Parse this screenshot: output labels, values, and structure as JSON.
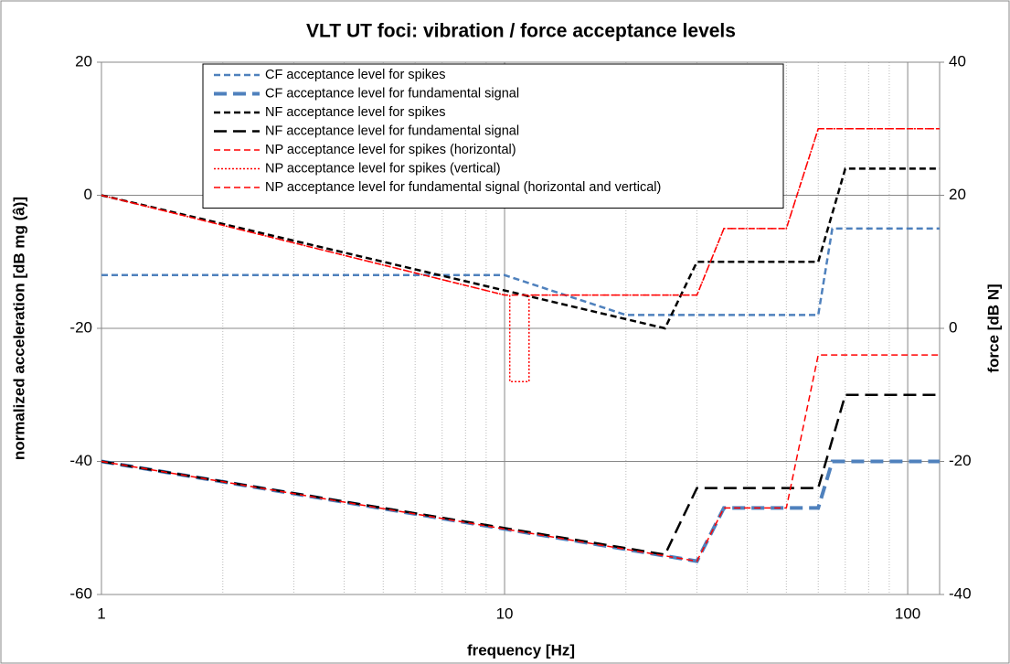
{
  "chart_data": {
    "type": "line",
    "title": "VLT UT foci: vibration / force acceptance levels",
    "xlabel": "frequency [Hz]",
    "ylabel": "normalized acceleration [dB mg (â)]",
    "y2label": "force [dB N]",
    "xscale": "log",
    "grid": true,
    "minor_grid": true,
    "legend": "upper center",
    "xlim": [
      1,
      120
    ],
    "xticks": [
      1,
      10,
      100
    ],
    "ylim": [
      -60,
      20
    ],
    "yticks": [
      -60,
      -40,
      -20,
      0,
      20
    ],
    "y2lim": [
      -40,
      40
    ],
    "y2ticks": [
      -40,
      -20,
      0,
      20,
      40
    ],
    "series": [
      {
        "name": "CF acceptance level for spikes",
        "color": "#4f81bd",
        "line_style": "dashed",
        "line_width": 2.5,
        "x": [
          1,
          10,
          20,
          60,
          65,
          120
        ],
        "values": [
          -12,
          -12,
          -18,
          -18,
          -5,
          -5
        ]
      },
      {
        "name": "CF acceptance level for fundamental signal",
        "color": "#4f81bd",
        "line_style": "long-dashed",
        "line_width": 4,
        "x": [
          1,
          30,
          35,
          60,
          65,
          120
        ],
        "values": [
          -40,
          -55,
          -47,
          -47,
          -40,
          -40
        ]
      },
      {
        "name": "NF acceptance level for spikes",
        "color": "#000000",
        "line_style": "dashed",
        "line_width": 2.5,
        "x": [
          1,
          25,
          30,
          60,
          70,
          120
        ],
        "values": [
          0,
          -20,
          -10,
          -10,
          4,
          4
        ]
      },
      {
        "name": "NF acceptance level for fundamental signal",
        "color": "#000000",
        "line_style": "long-dashed",
        "line_width": 2.5,
        "x": [
          1,
          25,
          30,
          60,
          70,
          120
        ],
        "values": [
          -40,
          -54,
          -44,
          -44,
          -30,
          -30
        ]
      },
      {
        "name": "NP acceptance level for spikes (horizontal)",
        "color": "#ff0000",
        "line_style": "dashed",
        "line_width": 1.5,
        "x": [
          1,
          10,
          30,
          35,
          50,
          60,
          120
        ],
        "values": [
          0,
          -15,
          -15,
          -5,
          -5,
          10,
          10
        ]
      },
      {
        "name": "NP acceptance level for spikes (vertical)",
        "color": "#ff0000",
        "line_style": "dotted",
        "line_width": 1.5,
        "x": [
          1,
          10,
          10.3,
          10.3,
          11.5,
          11.5,
          30,
          35,
          50,
          60,
          120
        ],
        "values": [
          0,
          -15,
          -15,
          -28,
          -28,
          -15,
          -15,
          -5,
          -5,
          10,
          10
        ]
      },
      {
        "name": "NP acceptance level for fundamental signal (horizontal and vertical)",
        "color": "#ff0000",
        "line_style": "dashed",
        "line_width": 1.5,
        "x": [
          1,
          30,
          35,
          50,
          60,
          120
        ],
        "values": [
          -40,
          -55,
          -47,
          -47,
          -24,
          -24
        ]
      }
    ]
  }
}
